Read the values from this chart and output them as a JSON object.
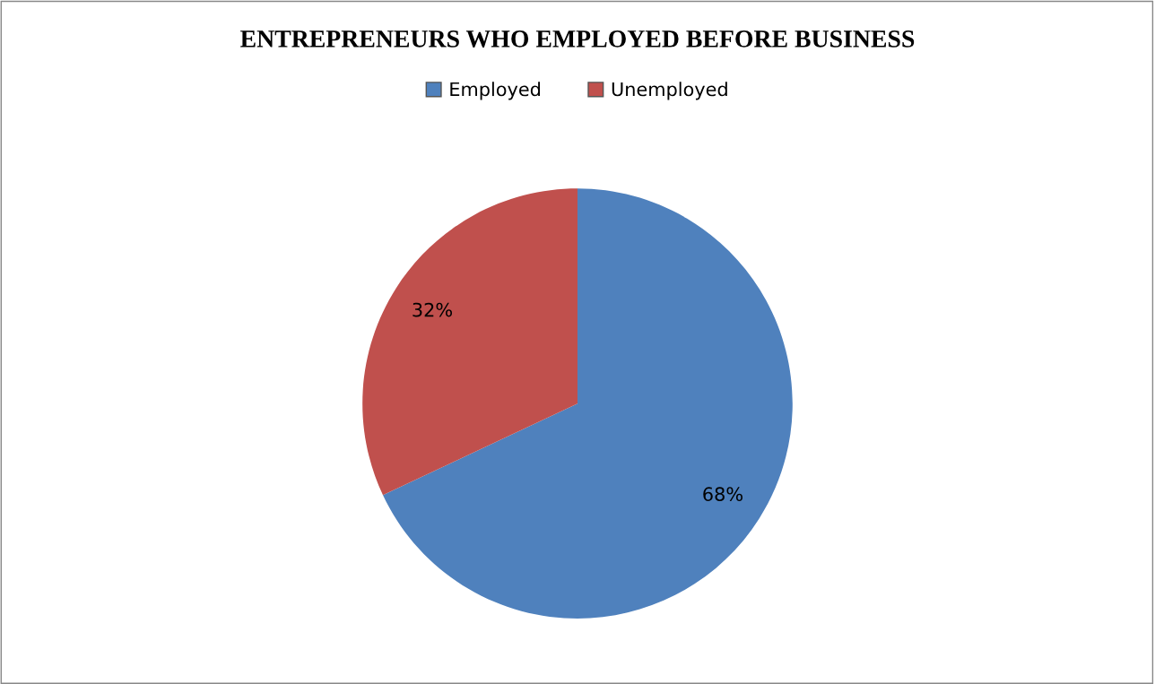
{
  "chart_data": {
    "type": "pie",
    "title": "ENTREPRENEURS WHO EMPLOYED BEFORE BUSINESS",
    "categories": [
      "Employed",
      "Unemployed"
    ],
    "values": [
      68,
      32
    ],
    "colors": [
      "#4f81bd",
      "#c0504d"
    ],
    "value_labels": [
      "68%",
      "32%"
    ],
    "legend": "top"
  }
}
